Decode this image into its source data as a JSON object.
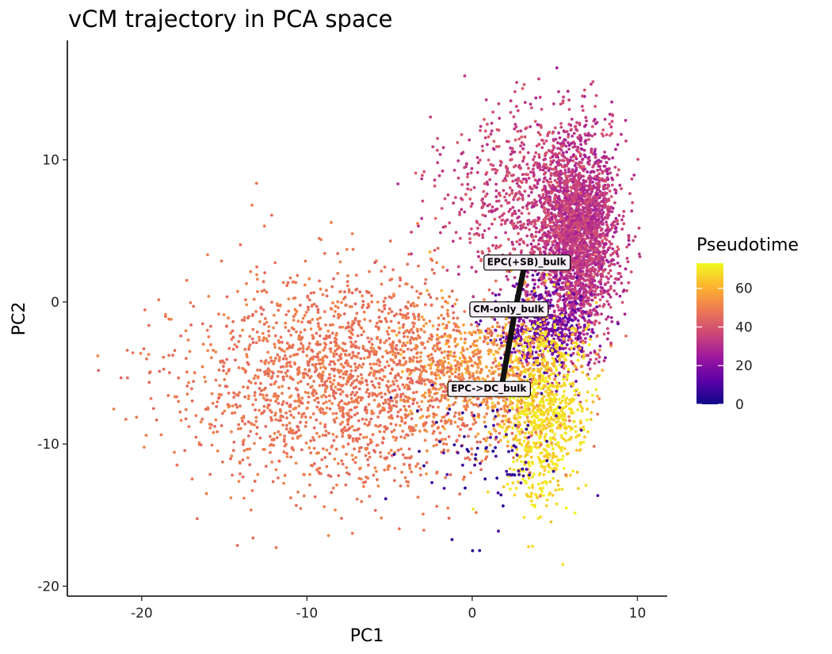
{
  "chart_data": {
    "type": "scatter",
    "title": "vCM trajectory in PCA space",
    "xlabel": "PC1",
    "ylabel": "PC2",
    "xlim": [
      -24.5,
      11.8
    ],
    "ylim": [
      -20.7,
      18.4
    ],
    "xticks": [
      -20,
      -10,
      0,
      10
    ],
    "yticks": [
      -20,
      -10,
      0,
      10
    ],
    "grid": false,
    "color_legend": {
      "title": "Pseudotime",
      "range": [
        0,
        73
      ],
      "ticks": [
        0,
        20,
        40,
        60
      ],
      "palette": [
        "#0d0887",
        "#5c01a6",
        "#9c179e",
        "#cc4778",
        "#ed7953",
        "#fdb32f",
        "#f0f921"
      ],
      "placement": "right"
    },
    "point_clusters": [
      {
        "name": "dense purple core",
        "cx": 6.3,
        "cy": 4.6,
        "sx": 1.2,
        "sy": 3.4,
        "n": 2600,
        "pseudotime": [
          25,
          40
        ]
      },
      {
        "name": "upper magenta spread",
        "cx": 3.5,
        "cy": 7.5,
        "sx": 2.6,
        "sy": 3.2,
        "n": 700,
        "pseudotime": [
          30,
          42
        ]
      },
      {
        "name": "dark purple band",
        "cx": 4.2,
        "cy": -1.8,
        "sx": 1.4,
        "sy": 1.6,
        "n": 500,
        "pseudotime": [
          8,
          22
        ]
      },
      {
        "name": "yellow lower tail",
        "cx": 4.3,
        "cy": -7.5,
        "sx": 1.2,
        "sy": 3.2,
        "n": 900,
        "pseudotime": [
          62,
          73
        ]
      },
      {
        "name": "orange transition",
        "cx": 0.5,
        "cy": -4.8,
        "sx": 2.2,
        "sy": 2.2,
        "n": 500,
        "pseudotime": [
          52,
          62
        ]
      },
      {
        "name": "salmon left cloud",
        "cx": -7.0,
        "cy": -5.5,
        "sx": 5.2,
        "sy": 3.6,
        "n": 2100,
        "pseudotime": [
          44,
          52
        ]
      },
      {
        "name": "scattered blue cells",
        "cx": 1.0,
        "cy": -10.5,
        "sx": 2.5,
        "sy": 2.5,
        "n": 90,
        "pseudotime": [
          3,
          10
        ]
      }
    ],
    "trajectory": {
      "line": [
        [
          3.1,
          2.2
        ],
        [
          2.6,
          -0.6
        ],
        [
          1.8,
          -5.8
        ]
      ],
      "labels": [
        {
          "text": "EPC(+SB)_bulk",
          "x": 3.3,
          "y": 2.8
        },
        {
          "text": "CM-only_bulk",
          "x": 2.2,
          "y": -0.5
        },
        {
          "text": "EPC->DC_bulk",
          "x": 1.0,
          "y": -6.1
        }
      ]
    }
  }
}
